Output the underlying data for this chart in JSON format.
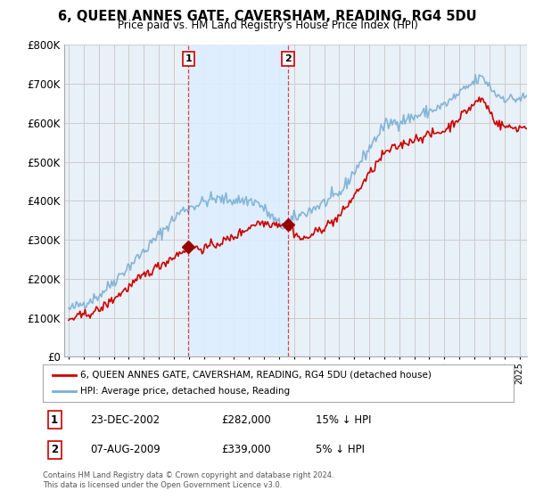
{
  "title": "6, QUEEN ANNES GATE, CAVERSHAM, READING, RG4 5DU",
  "subtitle": "Price paid vs. HM Land Registry's House Price Index (HPI)",
  "legend_line1": "6, QUEEN ANNES GATE, CAVERSHAM, READING, RG4 5DU (detached house)",
  "legend_line2": "HPI: Average price, detached house, Reading",
  "table_rows": [
    {
      "num": "1",
      "date": "23-DEC-2002",
      "price": "£282,000",
      "hpi": "15% ↓ HPI"
    },
    {
      "num": "2",
      "date": "07-AUG-2009",
      "price": "£339,000",
      "hpi": "5% ↓ HPI"
    }
  ],
  "footnote": "Contains HM Land Registry data © Crown copyright and database right 2024.\nThis data is licensed under the Open Government Licence v3.0.",
  "marker1_year": 2002.97,
  "marker1_value": 282000,
  "marker2_year": 2009.59,
  "marker2_value": 339000,
  "ylim": [
    0,
    800000
  ],
  "xlim_start": 1994.7,
  "xlim_end": 2025.5,
  "hpi_color": "#7aafd4",
  "price_color": "#cc0000",
  "marker_color": "#990000",
  "shade_color": "#ddeeff",
  "bg_color": "#e8f0f8",
  "plot_bg": "#ffffff",
  "grid_color": "#cccccc"
}
